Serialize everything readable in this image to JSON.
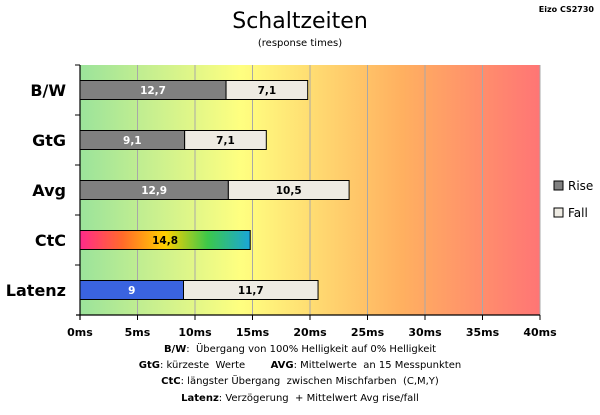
{
  "corner_label": "Eizo CS2730",
  "chart_data": {
    "type": "bar",
    "orientation": "horizontal",
    "stacked": true,
    "title": "Schaltzeiten",
    "subtitle": "(response times)",
    "categories": [
      "B/W",
      "GtG",
      "Avg",
      "CtC",
      "Latenz"
    ],
    "series": [
      {
        "name": "Rise",
        "values": [
          12.7,
          9.1,
          12.9,
          14.8,
          9
        ],
        "labels": [
          "12,7",
          "9,1",
          "12,9",
          "14,8",
          "9"
        ]
      },
      {
        "name": "Fall",
        "values": [
          7.1,
          7.1,
          10.5,
          null,
          11.7
        ],
        "labels": [
          "7,1",
          "7,1",
          "10,5",
          "",
          "11,7"
        ]
      }
    ],
    "xlim": [
      0,
      40
    ],
    "x_ticks": [
      0,
      5,
      10,
      15,
      20,
      25,
      30,
      35,
      40
    ],
    "x_tick_labels": [
      "0ms",
      "5ms",
      "10ms",
      "15ms",
      "20ms",
      "25ms",
      "30ms",
      "35ms",
      "40ms"
    ],
    "grid": true,
    "legend_position": "right",
    "background": "gradient green-yellow-red",
    "colors": {
      "rise": "#808080",
      "fall": "#eeebe3",
      "ctc_gradient": [
        "#ff2a8a",
        "#ff6a2a",
        "#ffd000",
        "#3cc84a",
        "#1aa6d8"
      ],
      "latenz_rise": "#3a63e0",
      "bg_gradient": [
        "#9be39b",
        "#ffff80",
        "#ffb060",
        "#ff7575"
      ]
    }
  },
  "notes": [
    {
      "key": "B/W",
      "text": ":  Übergang von 100% Helligkeit auf 0% Helligkeit"
    },
    {
      "key": "GtG",
      "text": ": kürzeste  Werte        ",
      "key2": "AVG",
      "text2": ": Mittelwerte  an 15 Messpunkten"
    },
    {
      "key": "CtC",
      "text": ": längster Übergang  zwischen Mischfarben  (C,M,Y)"
    },
    {
      "key": "Latenz",
      "text": ": Verzögerung  + Mittelwert Avg rise/fall"
    }
  ]
}
